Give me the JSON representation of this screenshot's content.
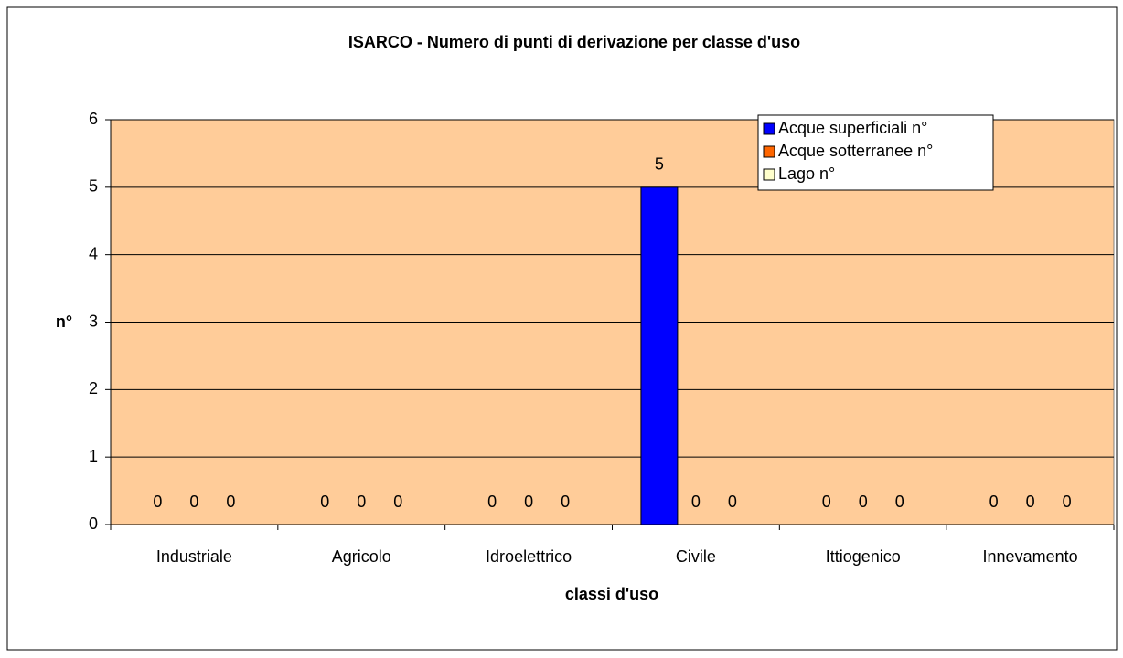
{
  "chart_data": {
    "type": "bar",
    "title": "ISARCO - Numero di punti di derivazione per classe d'uso",
    "x_label": "classi d'uso",
    "y_label": "n°",
    "categories": [
      "Industriale",
      "Agricolo",
      "Idroelettrico",
      "Civile",
      "Ittiogenico",
      "Innevamento"
    ],
    "series": [
      {
        "name": "Acque superficiali n°",
        "color": "#0000ff",
        "values": [
          0,
          0,
          0,
          5,
          0,
          0
        ]
      },
      {
        "name": "Acque sotterranee n°",
        "color": "#ff6600",
        "values": [
          0,
          0,
          0,
          0,
          0,
          0
        ]
      },
      {
        "name": "Lago n°",
        "color": "#ffffcc",
        "values": [
          0,
          0,
          0,
          0,
          0,
          0
        ]
      }
    ],
    "ylim": [
      0,
      6
    ],
    "yticks": [
      0,
      1,
      2,
      3,
      4,
      5,
      6
    ],
    "grid": true,
    "plot_background": "#ffcc99",
    "legend": "upper right"
  }
}
